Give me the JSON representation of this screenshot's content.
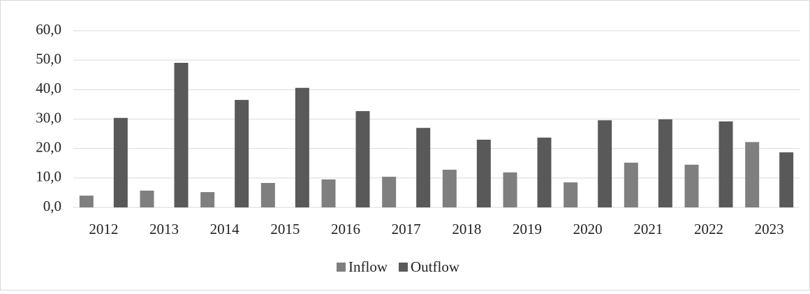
{
  "chart_data": {
    "type": "bar",
    "categories": [
      "2012",
      "2013",
      "2014",
      "2015",
      "2016",
      "2017",
      "2018",
      "2019",
      "2020",
      "2021",
      "2022",
      "2023"
    ],
    "series": [
      {
        "name": "Inflow",
        "color": "#7f7f7f",
        "values": [
          4.0,
          5.7,
          5.2,
          8.3,
          9.5,
          10.4,
          12.8,
          11.9,
          8.5,
          15.2,
          14.5,
          22.2
        ]
      },
      {
        "name": "Outflow",
        "color": "#595959",
        "values": [
          30.4,
          49.1,
          36.5,
          40.6,
          32.7,
          27.0,
          23.0,
          23.7,
          29.6,
          29.9,
          29.2,
          18.7
        ]
      }
    ],
    "ylim": [
      0,
      60
    ],
    "yticks": [
      {
        "value": 0,
        "label": "0,0"
      },
      {
        "value": 10,
        "label": "10,0"
      },
      {
        "value": 20,
        "label": "20,0"
      },
      {
        "value": 30,
        "label": "30,0"
      },
      {
        "value": 40,
        "label": "40,0"
      },
      {
        "value": 50,
        "label": "50,0"
      },
      {
        "value": 60,
        "label": "60,0"
      }
    ],
    "grid": true,
    "legend": "bottom"
  }
}
